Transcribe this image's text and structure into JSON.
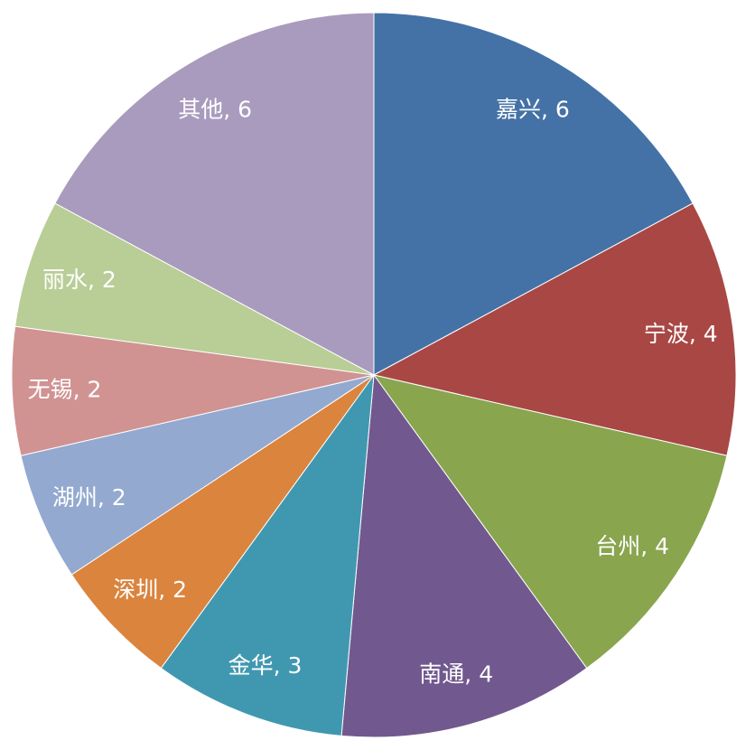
{
  "chart_data": {
    "type": "pie",
    "title": "",
    "start_angle": "top, clockwise",
    "slices": [
      {
        "label": "嘉兴",
        "value": 6,
        "color": "#4472a6"
      },
      {
        "label": "宁波",
        "value": 4,
        "color": "#a94745"
      },
      {
        "label": "台州",
        "value": 4,
        "color": "#89a54e"
      },
      {
        "label": "南通",
        "value": 4,
        "color": "#71598f"
      },
      {
        "label": "金华",
        "value": 3,
        "color": "#4098b0"
      },
      {
        "label": "深圳",
        "value": 2,
        "color": "#db843d"
      },
      {
        "label": "湖州",
        "value": 2,
        "color": "#93a9d0"
      },
      {
        "label": "无锡",
        "value": 2,
        "color": "#d09392"
      },
      {
        "label": "丽水",
        "value": 2,
        "color": "#b9cd96"
      },
      {
        "label": "其他",
        "value": 6,
        "color": "#a99bbd"
      }
    ],
    "data_label_format": "{label}, {value}",
    "legend": "none"
  }
}
